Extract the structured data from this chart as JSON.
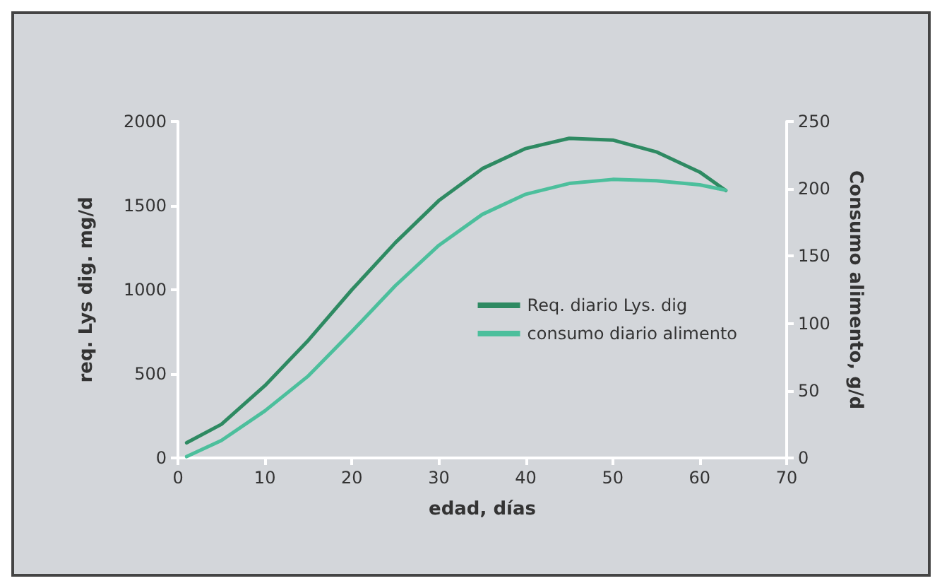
{
  "chart_data": {
    "type": "line",
    "xlabel": "edad, días",
    "ylabel": "req. Lys dig. mg/d",
    "y2label": "Consumo alimento, g/d",
    "x": [
      1,
      5,
      10,
      15,
      20,
      25,
      30,
      35,
      40,
      45,
      50,
      55,
      60,
      63
    ],
    "series": [
      {
        "name": "Req. diario Lys. dig",
        "color": "#2e8a62",
        "values": [
          90,
          200,
          430,
          700,
          1000,
          1280,
          1530,
          1720,
          1840,
          1900,
          1890,
          1820,
          1700,
          1590
        ]
      },
      {
        "name": "consumo diario alimento",
        "color": "#4cbf9c",
        "axis": "y2",
        "values": [
          1,
          13,
          35,
          61,
          94,
          128,
          158,
          181,
          196,
          204,
          207,
          206,
          203,
          199
        ]
      }
    ],
    "xlim": [
      0,
      70
    ],
    "xticks": [
      0,
      10,
      20,
      30,
      40,
      50,
      60,
      70
    ],
    "ylim": [
      0,
      2000
    ],
    "yticks": [
      0,
      500,
      1000,
      1500,
      2000
    ],
    "y2lim": [
      0,
      250
    ],
    "y2ticks": [
      0,
      50,
      100,
      150,
      200,
      250
    ],
    "legend": "right",
    "grid": false,
    "marker": "none",
    "line_style": "solid"
  }
}
